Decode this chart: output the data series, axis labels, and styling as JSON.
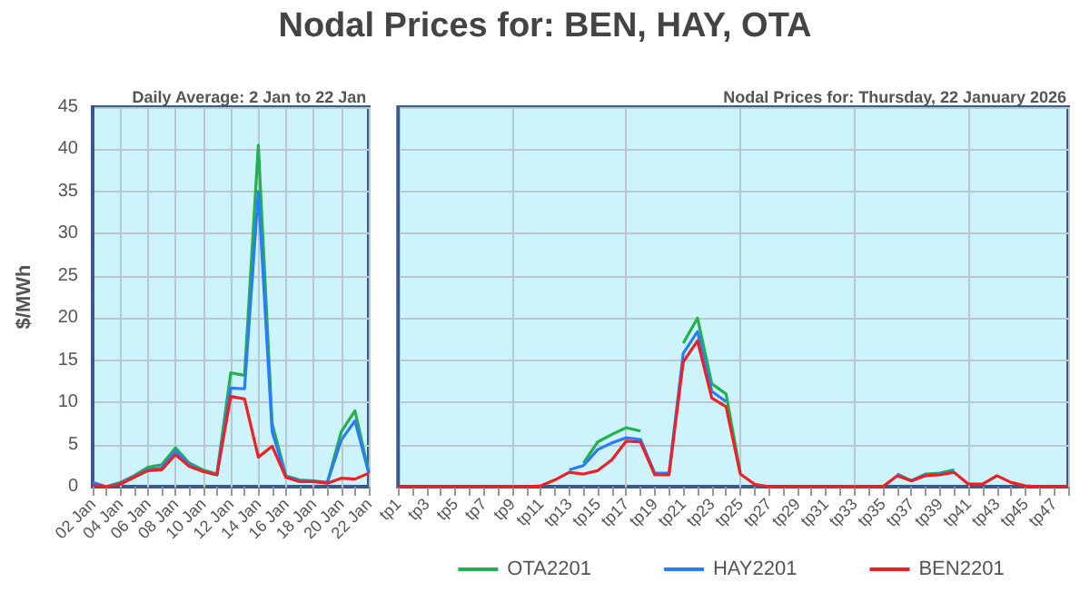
{
  "chart_data": [
    {
      "type": "line",
      "title": "Nodal Prices for: BEN, HAY, OTA",
      "subtitle": "Daily Average: 2 Jan to 22 Jan",
      "ylabel": "$/MWh",
      "categories": [
        "02 Jan",
        null,
        "04 Jan",
        null,
        "06 Jan",
        null,
        "08 Jan",
        null,
        "10 Jan",
        null,
        "12 Jan",
        null,
        "14 Jan",
        null,
        "16 Jan",
        null,
        "18 Jan",
        null,
        "20 Jan",
        null,
        "22 Jan"
      ],
      "series": [
        {
          "color": "#22b14c",
          "values": [
            0.3,
            0,
            0.5,
            1.3,
            2.3,
            2.6,
            4.6,
            2.8,
            2.0,
            1.5,
            13.5,
            13.2,
            40.5,
            7.5,
            1.3,
            0.8,
            0.7,
            0.5,
            6.5,
            9,
            1.7
          ]
        },
        {
          "color": "#2b7bff",
          "values": [
            0.5,
            0,
            0.4,
            1.2,
            2.0,
            2.2,
            4.2,
            2.6,
            1.8,
            1.4,
            11.7,
            11.6,
            35,
            6.5,
            1.2,
            0.7,
            0.6,
            0.5,
            5.5,
            7.8,
            1.6
          ]
        },
        {
          "color": "#ee2024",
          "values": [
            0.2,
            0,
            0.3,
            1.1,
            1.9,
            2.0,
            3.8,
            2.4,
            1.8,
            1.4,
            10.7,
            10.4,
            3.5,
            4.8,
            1.1,
            0.6,
            0.6,
            0.4,
            1.0,
            0.9,
            1.6
          ]
        }
      ],
      "ylim": [
        0,
        45
      ],
      "yticks": [
        0,
        5,
        10,
        15,
        20,
        25,
        30,
        35,
        40,
        45
      ],
      "grid": true,
      "marker": "none"
    },
    {
      "type": "line",
      "subtitle": "Nodal Prices for: Thursday, 22 January 2026",
      "categories": [
        "tp1",
        null,
        "tp3",
        null,
        "tp5",
        null,
        "tp7",
        null,
        "tp9",
        null,
        "tp11",
        null,
        "tp13",
        null,
        "tp15",
        null,
        "tp17",
        null,
        "tp19",
        null,
        "tp21",
        null,
        "tp23",
        null,
        "tp25",
        null,
        "tp27",
        null,
        "tp29",
        null,
        "tp31",
        null,
        "tp33",
        null,
        "tp35",
        null,
        "tp37",
        null,
        "tp39",
        null,
        "tp41",
        null,
        "tp43",
        null,
        "tp45",
        null,
        "tp47",
        null
      ],
      "series": [
        {
          "name": "OTA2201",
          "color": "#22b14c",
          "values": [
            null,
            null,
            null,
            null,
            null,
            null,
            null,
            null,
            null,
            null,
            null,
            null,
            null,
            2.8,
            5.3,
            6.2,
            7.0,
            6.6,
            null,
            null,
            17,
            20,
            12.2,
            11,
            1.7,
            null,
            null,
            null,
            null,
            null,
            null,
            null,
            null,
            null,
            null,
            1.5,
            0.7,
            1.5,
            1.6,
            2.0,
            null,
            null,
            null,
            null,
            null,
            null,
            null,
            null
          ]
        },
        {
          "name": "HAY2201",
          "color": "#2b7bff",
          "values": [
            null,
            null,
            null,
            null,
            null,
            null,
            null,
            null,
            null,
            null,
            null,
            null,
            2.0,
            2.5,
            4.4,
            5.2,
            5.8,
            5.6,
            1.6,
            1.6,
            15.8,
            18.4,
            11.3,
            10.1,
            null,
            null,
            null,
            null,
            null,
            null,
            null,
            null,
            null,
            null,
            null,
            1.4,
            0.7,
            1.4,
            1.5,
            1.8,
            null,
            null,
            null,
            null,
            null,
            null,
            null,
            null
          ]
        },
        {
          "name": "BEN2201",
          "color": "#ee2024",
          "values": [
            0,
            0,
            0,
            0,
            0,
            0,
            0,
            0,
            0,
            0,
            0.1,
            0.8,
            1.7,
            1.5,
            1.9,
            3.2,
            5.4,
            5.3,
            1.4,
            1.4,
            14.8,
            17.3,
            10.5,
            9.5,
            1.5,
            0.3,
            0,
            0,
            0,
            0,
            0,
            0,
            0,
            0,
            0,
            1.3,
            0.7,
            1.3,
            1.4,
            1.7,
            0.3,
            0.3,
            1.3,
            0.5,
            0.1,
            0,
            0,
            0
          ]
        }
      ],
      "ylim": [
        0,
        45
      ],
      "yticks": [
        0,
        5,
        10,
        15,
        20,
        25,
        30,
        35,
        40,
        45
      ],
      "grid": true,
      "marker": "none",
      "tick_labels": "x",
      "legend": "bottom"
    }
  ]
}
